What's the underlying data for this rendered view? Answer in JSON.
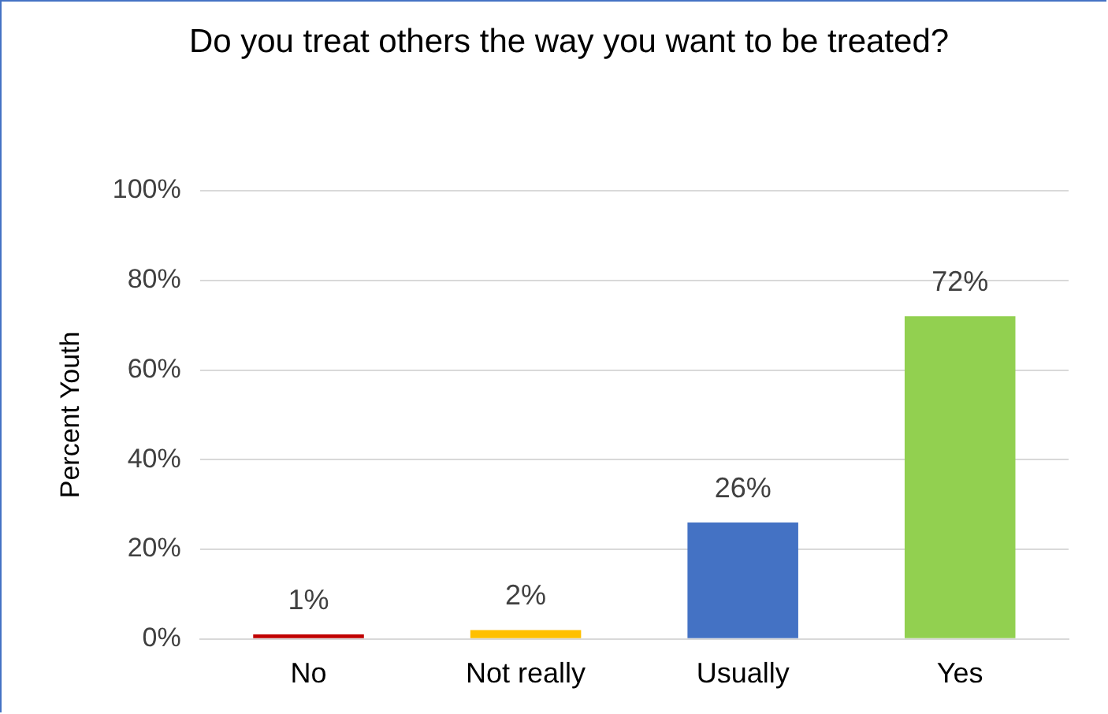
{
  "chart_data": {
    "type": "bar",
    "title": "Do you treat others the way you want to be treated?",
    "ylabel": "Percent Youth",
    "categories": [
      "No",
      "Not really",
      "Usually",
      "Yes"
    ],
    "values": [
      1,
      2,
      26,
      72
    ],
    "colors": [
      "#c00000",
      "#ffc000",
      "#4472c4",
      "#92d050"
    ],
    "value_labels": [
      "1%",
      "2%",
      "26%",
      "72%"
    ],
    "ylim": [
      0,
      100
    ],
    "yticks": [
      {
        "value": 0,
        "label": "0%"
      },
      {
        "value": 20,
        "label": "20%"
      },
      {
        "value": 40,
        "label": "40%"
      },
      {
        "value": 60,
        "label": "60%"
      },
      {
        "value": 80,
        "label": "80%"
      },
      {
        "value": 100,
        "label": "100%"
      }
    ],
    "grid": "y",
    "legend": false
  }
}
